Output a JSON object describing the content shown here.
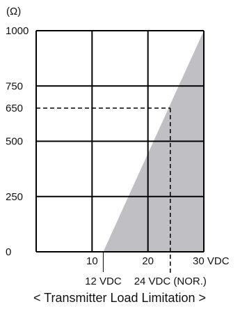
{
  "chart_data": {
    "type": "area",
    "title": "< Transmitter Load Limitation >",
    "ylabel": "(Ω)",
    "xlim": [
      0,
      30
    ],
    "ylim": [
      0,
      1000
    ],
    "x_ticks": [
      {
        "value": 10,
        "label": "10"
      },
      {
        "value": 20,
        "label": "20"
      },
      {
        "value": 30,
        "label": "30 VDC"
      }
    ],
    "y_ticks": [
      {
        "value": 0,
        "label": "0"
      },
      {
        "value": 250,
        "label": "250"
      },
      {
        "value": 500,
        "label": "500"
      },
      {
        "value": 650,
        "label": "650"
      },
      {
        "value": 750,
        "label": "750"
      },
      {
        "value": 1000,
        "label": "1000"
      }
    ],
    "x_grid": [
      10,
      20,
      30
    ],
    "y_grid": [
      250,
      500,
      750,
      1000
    ],
    "region": {
      "points": [
        [
          12,
          0
        ],
        [
          30,
          0
        ],
        [
          30,
          1000
        ]
      ],
      "color": "#c0c0c4"
    },
    "reference": {
      "x": 24,
      "y": 650,
      "style": "dashed"
    },
    "annotations": [
      {
        "x": 12,
        "label": "12 VDC"
      },
      {
        "x": 24,
        "label": "24 VDC (NOR.)"
      }
    ],
    "grid": true
  }
}
